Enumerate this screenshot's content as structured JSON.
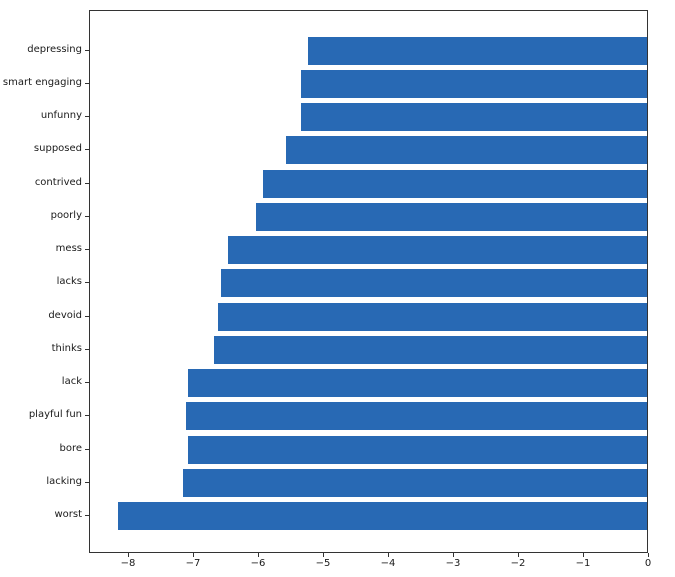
{
  "chart_data": {
    "type": "bar",
    "orientation": "horizontal",
    "title": "",
    "xlabel": "",
    "ylabel": "",
    "categories": [
      "depressing",
      "smart engaging",
      "unfunny",
      "supposed",
      "contrived",
      "poorly",
      "mess",
      "lacks",
      "devoid",
      "thinks",
      "lack",
      "playful fun",
      "bore",
      "lacking",
      "worst"
    ],
    "values": [
      -5.24,
      -5.35,
      -5.35,
      -5.58,
      -5.94,
      -6.05,
      -6.47,
      -6.58,
      -6.63,
      -6.69,
      -7.1,
      -7.12,
      -7.09,
      -7.17,
      -8.17
    ],
    "xlim": [
      -8.6,
      0
    ],
    "xticks": [
      -8,
      -7,
      -6,
      -5,
      -4,
      -3,
      -2,
      -1,
      0
    ],
    "xtick_labels": [
      "−8",
      "−7",
      "−6",
      "−5",
      "−4",
      "−3",
      "−2",
      "−1",
      "0"
    ],
    "grid": false,
    "legend": null,
    "bar_color": "#2869b4",
    "axis_color": "#333333",
    "text_color": "#1a1a1a",
    "background": "#ffffff"
  }
}
